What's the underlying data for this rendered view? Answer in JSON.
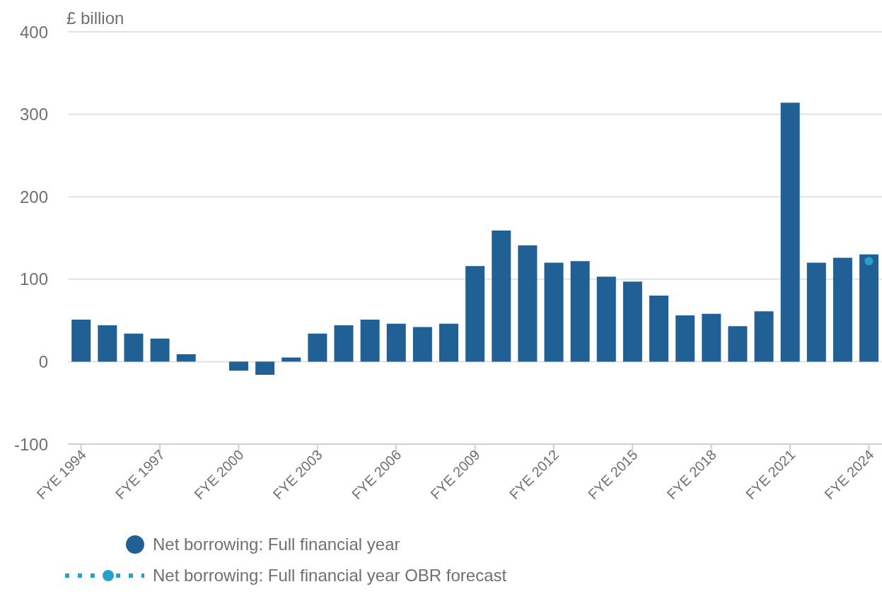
{
  "chart_data": {
    "type": "bar",
    "ylabel": "£ billion",
    "categories": [
      "FYE 1994",
      null,
      null,
      "FYE 1997",
      null,
      null,
      "FYE 2000",
      null,
      null,
      "FYE 2003",
      null,
      null,
      "FYE 2006",
      null,
      null,
      "FYE 2009",
      null,
      null,
      "FYE 2012",
      null,
      null,
      "FYE 2015",
      null,
      null,
      "FYE 2018",
      null,
      null,
      "FYE 2021",
      null,
      null,
      "FYE 2024"
    ],
    "series": [
      {
        "name": "Net borrowing: Full financial year",
        "color": "#206095",
        "values": [
          51,
          44,
          34,
          28,
          9,
          0,
          -11,
          -16,
          5,
          34,
          44,
          51,
          46,
          42,
          46,
          116,
          159,
          141,
          120,
          122,
          103,
          97,
          80,
          56,
          58,
          43,
          61,
          314,
          120,
          126,
          130
        ]
      },
      {
        "name": "Net borrowing: Full financial year OBR forecast",
        "type": "line",
        "color": "#27a0cc",
        "line_style": "dotted",
        "marker": "circle",
        "values": [
          null,
          null,
          null,
          null,
          null,
          null,
          null,
          null,
          null,
          null,
          null,
          null,
          null,
          null,
          null,
          null,
          null,
          null,
          null,
          null,
          null,
          null,
          null,
          null,
          null,
          null,
          null,
          null,
          null,
          null,
          122
        ]
      }
    ],
    "ylim": [
      -100,
      400
    ],
    "yticks": [
      -100,
      0,
      100,
      200,
      300,
      400
    ],
    "grid": "y",
    "legend": "bottom"
  }
}
